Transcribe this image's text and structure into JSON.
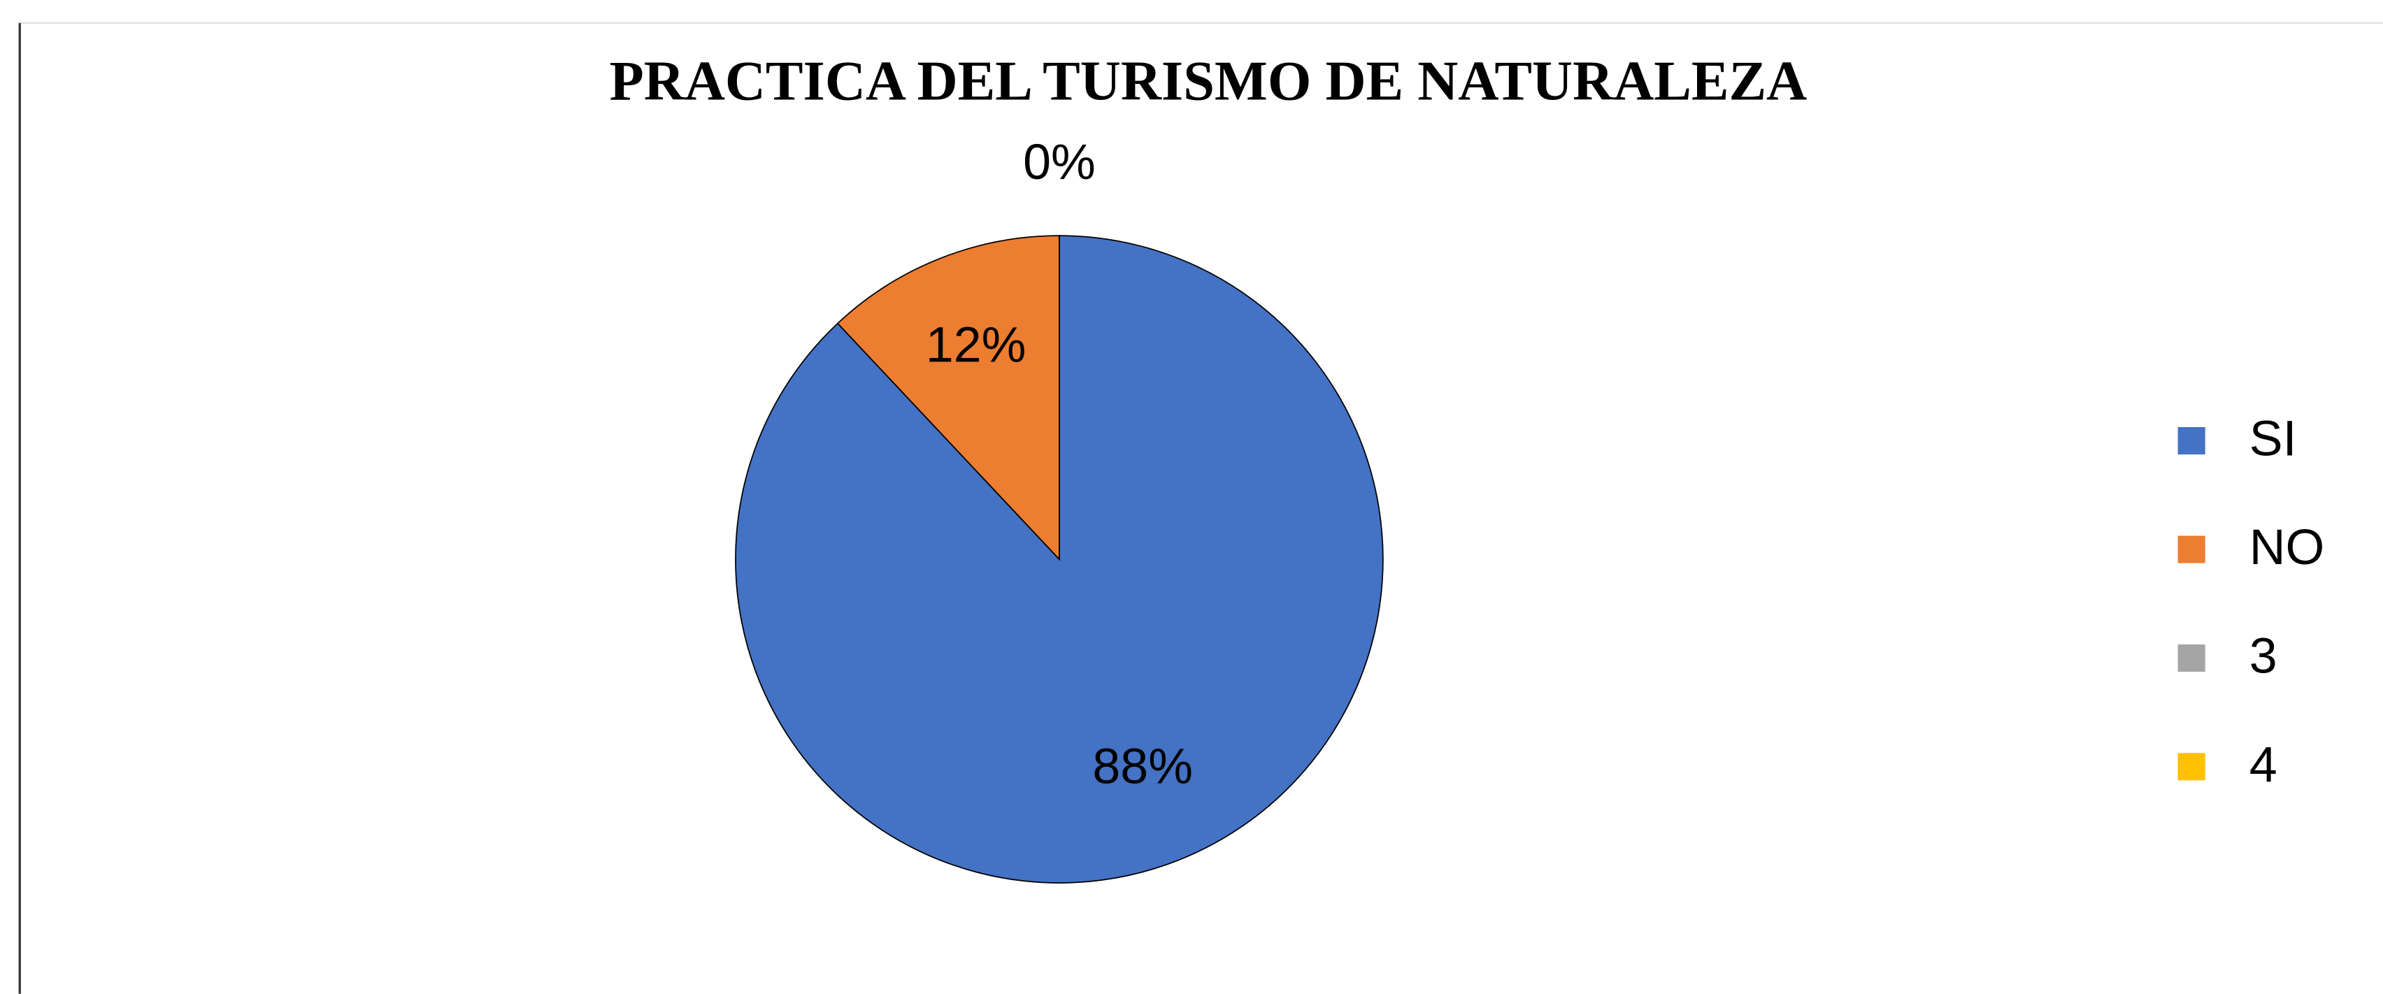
{
  "chart_data": {
    "type": "pie",
    "title": "PRACTICA DEL TURISMO DE NATURALEZA",
    "categories": [
      "SI",
      "NO",
      "3",
      "4"
    ],
    "values": [
      88,
      12,
      0,
      0
    ],
    "value_labels": [
      "88%",
      "12%",
      "0%",
      null
    ],
    "colors": [
      "#4472c4",
      "#ed7d31",
      "#a5a5a5",
      "#ffc000"
    ],
    "legend": "right"
  }
}
